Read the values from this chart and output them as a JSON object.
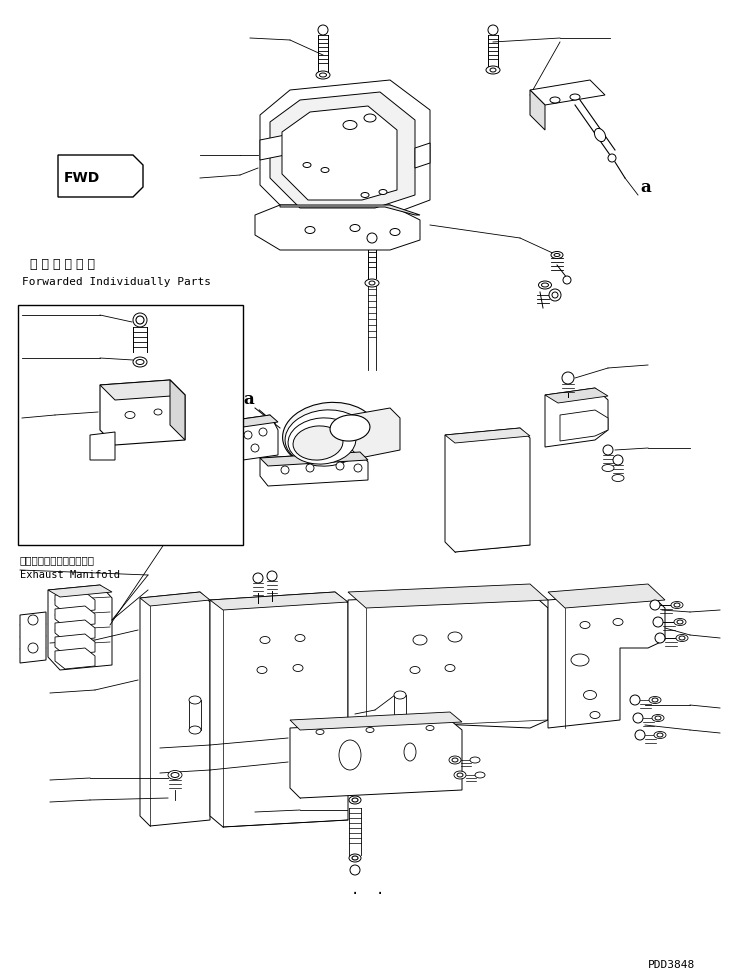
{
  "background_color": "#ffffff",
  "line_color": "#000000",
  "fig_width": 7.41,
  "fig_height": 9.8,
  "dpi": 100,
  "text_forwarded_jp": "単 品 発 送 部 品",
  "text_forwarded_en": "Forwarded Individually Parts",
  "text_exhaust_jp": "エキゾーストマニホールド",
  "text_exhaust_en": "Exhaust Manifold",
  "text_a": "a",
  "watermark": "PDD3848"
}
